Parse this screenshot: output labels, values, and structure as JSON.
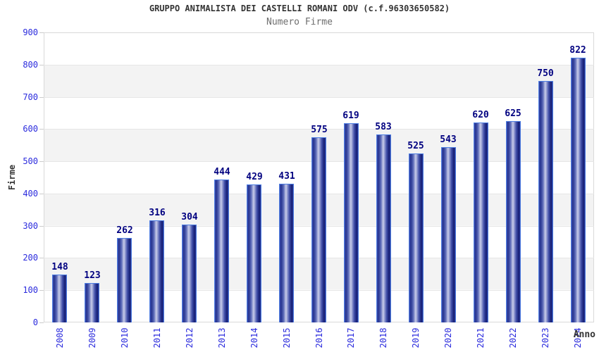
{
  "chart_data": {
    "type": "bar",
    "title": "GRUPPO ANIMALISTA DEI CASTELLI ROMANI ODV (c.f.96303650582)",
    "subtitle": "Numero Firme",
    "categories": [
      "2008",
      "2009",
      "2010",
      "2011",
      "2012",
      "2013",
      "2014",
      "2015",
      "2016",
      "2017",
      "2018",
      "2019",
      "2020",
      "2021",
      "2022",
      "2023",
      "2024"
    ],
    "values": [
      148,
      123,
      262,
      316,
      304,
      444,
      429,
      431,
      575,
      619,
      583,
      525,
      543,
      620,
      625,
      750,
      822
    ],
    "xlabel": "Anno",
    "ylabel": "Firme",
    "ylim": [
      0,
      900
    ],
    "ytick_step": 100,
    "grid": "horizontal-bands-alternating",
    "legend": "none",
    "value_labels": "above-bars",
    "colors": {
      "bar_edge": "#4d7de2",
      "bar_dark": "#1b2580",
      "bar_highlight": "#c9cdea",
      "axis_tick_label": "#2b2bdd",
      "value_label": "#000080",
      "title": "#333333",
      "subtitle": "#6e6e6e",
      "band": "#f3f3f3",
      "gridline": "#e6e6e6",
      "plot_border": "#d9d9d9"
    }
  }
}
